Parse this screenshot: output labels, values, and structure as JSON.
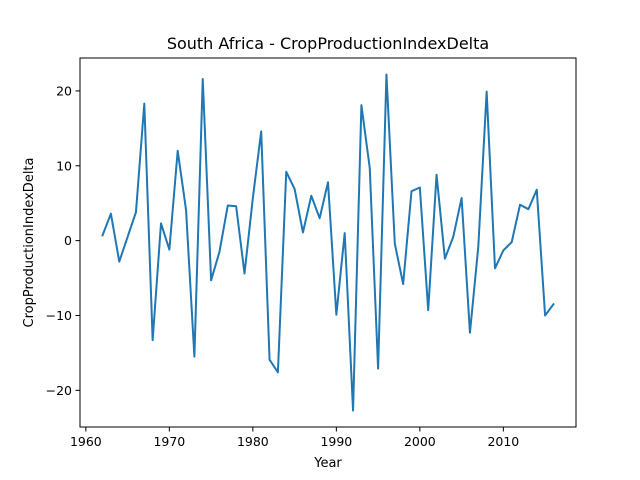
{
  "chart_data": {
    "type": "line",
    "title": "South Africa - CropProductionIndexDelta",
    "xlabel": "Year",
    "ylabel": "CropProductionIndexDelta",
    "xlim": [
      1959.3,
      2018.7
    ],
    "ylim": [
      -24.9,
      24.4
    ],
    "x_ticks": [
      1960,
      1970,
      1980,
      1990,
      2000,
      2010
    ],
    "x_tick_labels": [
      "1960",
      "1970",
      "1980",
      "1990",
      "2000",
      "2010"
    ],
    "y_ticks": [
      -20,
      -10,
      0,
      10,
      20
    ],
    "y_tick_labels": [
      "−20",
      "−10",
      "0",
      "10",
      "20"
    ],
    "grid": false,
    "series": [
      {
        "color": "#1f77b4",
        "x": [
          1962,
          1963,
          1964,
          1965,
          1966,
          1967,
          1968,
          1969,
          1970,
          1971,
          1972,
          1973,
          1974,
          1975,
          1976,
          1977,
          1978,
          1979,
          1980,
          1981,
          1982,
          1983,
          1984,
          1985,
          1986,
          1987,
          1988,
          1989,
          1990,
          1991,
          1992,
          1993,
          1994,
          1995,
          1996,
          1997,
          1998,
          1999,
          2000,
          2001,
          2002,
          2003,
          2004,
          2005,
          2006,
          2007,
          2008,
          2009,
          2010,
          2011,
          2012,
          2013,
          2014,
          2015,
          2016
        ],
        "values": [
          0.7,
          3.6,
          -2.8,
          0.5,
          3.8,
          18.3,
          -13.3,
          2.3,
          -1.2,
          12.0,
          4.1,
          -15.5,
          21.6,
          -5.3,
          -1.5,
          4.7,
          4.6,
          -4.4,
          5.7,
          14.6,
          -15.9,
          -17.6,
          9.2,
          6.9,
          1.1,
          6.0,
          3.0,
          7.8,
          -9.9,
          1.0,
          -22.7,
          18.1,
          9.7,
          -17.1,
          22.2,
          -0.4,
          -5.8,
          6.6,
          7.1,
          -9.3,
          8.8,
          -2.4,
          0.5,
          5.7,
          -12.3,
          -0.8,
          19.9,
          -3.7,
          -1.3,
          -0.2,
          4.8,
          4.2,
          6.8,
          -10.0,
          -8.5
        ]
      }
    ]
  }
}
